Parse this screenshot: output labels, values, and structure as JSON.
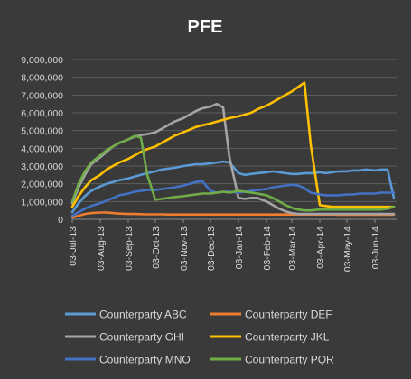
{
  "chart_data": {
    "type": "line",
    "title": "PFE",
    "xlabel": "",
    "ylabel": "",
    "ylim": [
      0,
      9000000
    ],
    "y_ticks": [
      "0",
      "1,000,000",
      "2,000,000",
      "3,000,000",
      "4,000,000",
      "5,000,000",
      "6,000,000",
      "7,000,000",
      "8,000,000",
      "9,000,000"
    ],
    "x_ticks": [
      "03-Jul-13",
      "03-Aug-13",
      "03-Sep-13",
      "03-Oct-13",
      "03-Nov-13",
      "03-Dec-13",
      "03-Jan-14",
      "03-Feb-14",
      "03-Mar-14",
      "03-Apr-14",
      "03-May-14",
      "03-Jun-14"
    ],
    "grid": true,
    "legend_position": "bottom",
    "x": [
      "2013-07-03",
      "2013-07-10",
      "2013-07-17",
      "2013-07-24",
      "2013-08-03",
      "2013-08-10",
      "2013-08-17",
      "2013-08-24",
      "2013-09-03",
      "2013-09-10",
      "2013-09-17",
      "2013-09-24",
      "2013-10-03",
      "2013-10-10",
      "2013-10-17",
      "2013-10-24",
      "2013-11-03",
      "2013-11-10",
      "2013-11-17",
      "2013-11-24",
      "2013-12-03",
      "2013-12-10",
      "2013-12-17",
      "2013-12-24",
      "2014-01-03",
      "2014-01-10",
      "2014-01-17",
      "2014-01-24",
      "2014-02-03",
      "2014-02-10",
      "2014-02-17",
      "2014-02-24",
      "2014-03-03",
      "2014-03-10",
      "2014-03-17",
      "2014-03-24",
      "2014-04-03",
      "2014-04-10",
      "2014-04-17",
      "2014-04-24",
      "2014-05-03",
      "2014-05-10",
      "2014-05-17",
      "2014-05-24",
      "2014-06-03",
      "2014-06-10",
      "2014-06-17",
      "2014-06-24"
    ],
    "series": [
      {
        "name": "Counterparty ABC",
        "color": "#5b9bd5",
        "values": [
          400000,
          900000,
          1300000,
          1600000,
          1850000,
          2000000,
          2100000,
          2200000,
          2300000,
          2400000,
          2500000,
          2600000,
          2700000,
          2800000,
          2850000,
          2900000,
          3000000,
          3050000,
          3100000,
          3100000,
          3150000,
          3200000,
          3250000,
          3200000,
          2600000,
          2500000,
          2550000,
          2600000,
          2650000,
          2700000,
          2650000,
          2600000,
          2550000,
          2550000,
          2600000,
          2600000,
          2650000,
          2600000,
          2650000,
          2700000,
          2700000,
          2750000,
          2750000,
          2800000,
          2750000,
          2800000,
          2800000,
          1200000
        ]
      },
      {
        "name": "Counterparty DEF",
        "color": "#ed7d31",
        "values": [
          100000,
          200000,
          300000,
          350000,
          380000,
          380000,
          350000,
          320000,
          300000,
          300000,
          290000,
          280000,
          280000,
          280000,
          270000,
          270000,
          270000,
          270000,
          270000,
          270000,
          270000,
          270000,
          270000,
          270000,
          270000,
          270000,
          270000,
          270000,
          270000,
          270000,
          270000,
          270000,
          270000,
          270000,
          270000,
          270000,
          270000,
          270000,
          270000,
          260000,
          260000,
          260000,
          260000,
          260000,
          260000,
          260000,
          260000,
          260000
        ]
      },
      {
        "name": "Counterparty GHI",
        "color": "#a5a5a5",
        "values": [
          900000,
          1800000,
          2500000,
          3100000,
          3500000,
          3800000,
          4100000,
          4300000,
          4500000,
          4650000,
          4750000,
          4800000,
          4900000,
          5100000,
          5300000,
          5500000,
          5700000,
          5900000,
          6100000,
          6250000,
          6350000,
          6500000,
          6300000,
          3500000,
          1200000,
          1150000,
          1200000,
          1200000,
          1000000,
          800000,
          600000,
          450000,
          350000,
          300000,
          300000,
          300000,
          300000,
          300000,
          300000,
          300000,
          300000,
          300000,
          300000,
          300000,
          300000,
          300000,
          300000,
          300000
        ]
      },
      {
        "name": "Counterparty JKL",
        "color": "#ffc000",
        "values": [
          700000,
          1300000,
          1800000,
          2200000,
          2500000,
          2800000,
          3000000,
          3200000,
          3400000,
          3600000,
          3800000,
          3950000,
          4100000,
          4300000,
          4500000,
          4700000,
          4900000,
          5050000,
          5200000,
          5300000,
          5400000,
          5500000,
          5600000,
          5700000,
          5800000,
          5900000,
          6000000,
          6200000,
          6400000,
          6600000,
          6800000,
          7000000,
          7200000,
          7450000,
          7700000,
          4200000,
          800000,
          750000,
          700000,
          700000,
          700000,
          700000,
          700000,
          700000,
          700000,
          700000,
          700000,
          700000
        ]
      },
      {
        "name": "Counterparty MNO",
        "color": "#4472c4",
        "values": [
          200000,
          400000,
          600000,
          750000,
          900000,
          1050000,
          1200000,
          1350000,
          1450000,
          1550000,
          1600000,
          1650000,
          1650000,
          1700000,
          1750000,
          1800000,
          1900000,
          2000000,
          2100000,
          2150000,
          1600000,
          1500000,
          1550000,
          1550000,
          1500000,
          1550000,
          1600000,
          1650000,
          1700000,
          1800000,
          1850000,
          1900000,
          1950000,
          1900000,
          1750000,
          1500000,
          1400000,
          1350000,
          1350000,
          1350000,
          1400000,
          1400000,
          1450000,
          1450000,
          1450000,
          1500000,
          1500000,
          1500000
        ]
      },
      {
        "name": "Counterparty PQR",
        "color": "#70ad47",
        "values": [
          1000000,
          2000000,
          2700000,
          3200000,
          3600000,
          3900000,
          4100000,
          4300000,
          4500000,
          4700000,
          4600000,
          2500000,
          1100000,
          1150000,
          1200000,
          1250000,
          1300000,
          1350000,
          1400000,
          1450000,
          1450000,
          1500000,
          1550000,
          1500000,
          1600000,
          1550000,
          1500000,
          1450000,
          1350000,
          1200000,
          1000000,
          800000,
          650000,
          550000,
          500000,
          500000,
          550000,
          550000,
          550000,
          550000,
          550000,
          550000,
          550000,
          550000,
          550000,
          550000,
          600000,
          700000
        ]
      }
    ]
  }
}
